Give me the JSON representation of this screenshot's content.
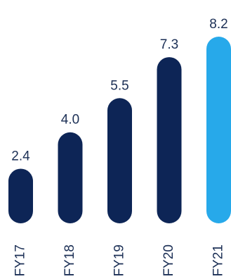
{
  "chart_data": {
    "type": "bar",
    "title": "",
    "xlabel": "",
    "ylabel": "",
    "categories": [
      "FY17",
      "FY18",
      "FY19",
      "FY20",
      "FY21"
    ],
    "values": [
      2.4,
      4.0,
      5.5,
      7.3,
      8.2
    ],
    "value_labels": [
      "2.4",
      "4.0",
      "5.5",
      "7.3",
      "8.2"
    ],
    "ylim": [
      0,
      8.2
    ],
    "grid": false,
    "legend": "none",
    "colors": {
      "default_bar": "#0d2556",
      "highlight_bar": "#27a9ea",
      "text": "#1b2f55"
    },
    "highlight_category": "FY21"
  }
}
